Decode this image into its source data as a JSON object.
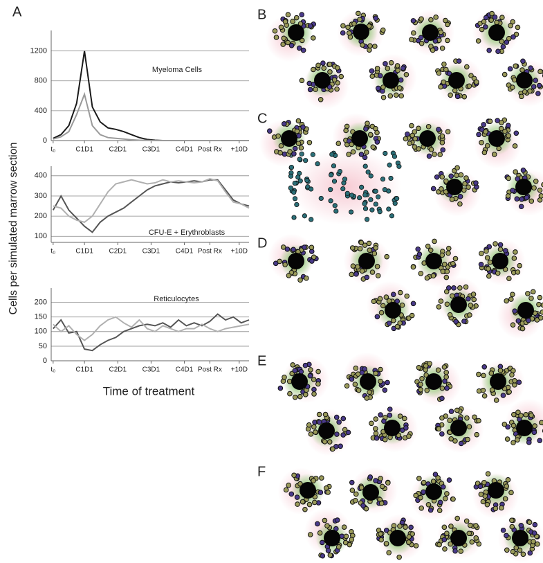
{
  "figure": {
    "panel_a": "A",
    "y_label": "Cells per simulated marrow section",
    "x_label": "Time of treatment",
    "panels": [
      "B",
      "C",
      "D",
      "E",
      "F"
    ]
  },
  "chart_data": [
    {
      "type": "line",
      "annotation": "Myeloma Cells",
      "x": [
        0,
        4,
        8,
        12,
        16,
        20,
        24,
        28,
        32,
        36,
        40,
        44,
        48,
        52,
        56,
        60,
        64,
        68,
        72,
        76,
        80,
        84,
        88,
        92,
        96,
        100
      ],
      "series": [
        {
          "color": "#1a1a1a",
          "values": [
            30,
            80,
            200,
            500,
            1200,
            450,
            250,
            170,
            150,
            120,
            80,
            40,
            15,
            5,
            0,
            0,
            0,
            0,
            0,
            0,
            0,
            0,
            0,
            0,
            0,
            0
          ]
        },
        {
          "color": "#9a9a9a",
          "values": [
            20,
            50,
            120,
            350,
            620,
            200,
            80,
            40,
            30,
            20,
            10,
            5,
            2,
            0,
            0,
            0,
            0,
            0,
            0,
            0,
            0,
            0,
            0,
            0,
            0,
            0
          ]
        }
      ],
      "ylim": [
        0,
        1400
      ],
      "yticks": [
        0,
        400,
        800,
        1200
      ],
      "xlim": [
        -1,
        100
      ],
      "xticks": [
        {
          "value": 0,
          "label": "t₀"
        },
        {
          "value": 16,
          "label": "C1D1"
        },
        {
          "value": 33,
          "label": "C2D1"
        },
        {
          "value": 50,
          "label": "C3D1"
        },
        {
          "value": 67,
          "label": "C4D1"
        },
        {
          "value": 80,
          "label": "Post Rx"
        },
        {
          "value": 95,
          "label": "+10D"
        }
      ],
      "grid": true
    },
    {
      "type": "line",
      "annotation": "CFU-E + Erythroblasts",
      "x": [
        0,
        4,
        8,
        12,
        16,
        20,
        24,
        28,
        32,
        36,
        40,
        44,
        48,
        52,
        56,
        60,
        64,
        68,
        72,
        76,
        80,
        84,
        88,
        92,
        96,
        100
      ],
      "series": [
        {
          "color": "#555555",
          "values": [
            230,
            300,
            230,
            190,
            150,
            120,
            170,
            200,
            220,
            240,
            270,
            300,
            330,
            350,
            360,
            370,
            365,
            370,
            375,
            370,
            380,
            380,
            330,
            280,
            260,
            250
          ]
        },
        {
          "color": "#b0b0b0",
          "values": [
            250,
            240,
            200,
            180,
            170,
            200,
            260,
            320,
            360,
            370,
            380,
            370,
            360,
            365,
            380,
            370,
            375,
            370,
            365,
            370,
            385,
            375,
            320,
            270,
            260,
            240
          ]
        }
      ],
      "ylim": [
        70,
        420
      ],
      "yticks": [
        100,
        200,
        300,
        400
      ],
      "xlim": [
        -1,
        100
      ],
      "xticks": [
        {
          "value": 0,
          "label": "t₀"
        },
        {
          "value": 16,
          "label": "C1D1"
        },
        {
          "value": 33,
          "label": "C2D1"
        },
        {
          "value": 50,
          "label": "C3D1"
        },
        {
          "value": 67,
          "label": "C4D1"
        },
        {
          "value": 80,
          "label": "Post Rx"
        },
        {
          "value": 95,
          "label": "+10D"
        }
      ],
      "grid": true
    },
    {
      "type": "line",
      "annotation": "Reticulocytes",
      "x": [
        0,
        4,
        8,
        12,
        16,
        20,
        24,
        28,
        32,
        36,
        40,
        44,
        48,
        52,
        56,
        60,
        64,
        68,
        72,
        76,
        80,
        84,
        88,
        92,
        96,
        100
      ],
      "series": [
        {
          "color": "#555555",
          "values": [
            110,
            140,
            95,
            100,
            40,
            35,
            55,
            70,
            80,
            100,
            110,
            120,
            125,
            120,
            130,
            115,
            140,
            120,
            130,
            120,
            135,
            160,
            140,
            150,
            130,
            140
          ]
        },
        {
          "color": "#b0b0b0",
          "values": [
            125,
            100,
            120,
            90,
            70,
            90,
            120,
            140,
            150,
            130,
            115,
            140,
            110,
            100,
            120,
            110,
            100,
            110,
            110,
            125,
            110,
            100,
            110,
            115,
            120,
            125
          ]
        }
      ],
      "ylim": [
        0,
        230
      ],
      "yticks": [
        0,
        50,
        100,
        150,
        200
      ],
      "xlim": [
        -1,
        100
      ],
      "xticks": [
        {
          "value": 0,
          "label": "t₀"
        },
        {
          "value": 16,
          "label": "C1D1"
        },
        {
          "value": 33,
          "label": "C2D1"
        },
        {
          "value": 50,
          "label": "C3D1"
        },
        {
          "value": 67,
          "label": "C4D1"
        },
        {
          "value": 80,
          "label": "Post Rx"
        },
        {
          "value": 95,
          "label": "+10D"
        }
      ],
      "grid": true
    }
  ]
}
